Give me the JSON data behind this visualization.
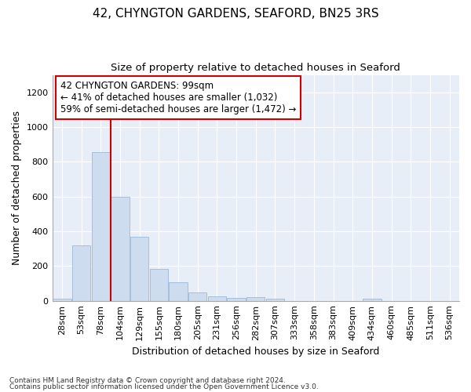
{
  "title_line1": "42, CHYNGTON GARDENS, SEAFORD, BN25 3RS",
  "title_line2": "Size of property relative to detached houses in Seaford",
  "xlabel": "Distribution of detached houses by size in Seaford",
  "ylabel": "Number of detached properties",
  "bar_labels": [
    "28sqm",
    "53sqm",
    "78sqm",
    "104sqm",
    "129sqm",
    "155sqm",
    "180sqm",
    "205sqm",
    "231sqm",
    "256sqm",
    "282sqm",
    "307sqm",
    "333sqm",
    "358sqm",
    "383sqm",
    "409sqm",
    "434sqm",
    "460sqm",
    "485sqm",
    "511sqm",
    "536sqm"
  ],
  "bar_values": [
    13,
    318,
    858,
    598,
    370,
    185,
    107,
    47,
    24,
    17,
    20,
    10,
    0,
    0,
    0,
    0,
    12,
    0,
    0,
    0,
    0
  ],
  "bar_color": "#cddcef",
  "bar_edge_color": "#9ab9d8",
  "ylim": [
    0,
    1300
  ],
  "yticks": [
    0,
    200,
    400,
    600,
    800,
    1000,
    1200
  ],
  "red_line_x": 3,
  "annotation_text": "42 CHYNGTON GARDENS: 99sqm\n← 41% of detached houses are smaller (1,032)\n59% of semi-detached houses are larger (1,472) →",
  "annotation_box_color": "#ffffff",
  "annotation_box_edge": "#cc0000",
  "red_line_color": "#cc0000",
  "footnote_line1": "Contains HM Land Registry data © Crown copyright and database right 2024.",
  "footnote_line2": "Contains public sector information licensed under the Open Government Licence v3.0.",
  "bg_color": "#ffffff",
  "plot_bg_color": "#e8eef8",
  "grid_color": "#ffffff",
  "title_fontsize": 11,
  "subtitle_fontsize": 9.5,
  "axis_label_fontsize": 9,
  "tick_fontsize": 8,
  "annotation_fontsize": 8.5,
  "footnote_fontsize": 6.5
}
